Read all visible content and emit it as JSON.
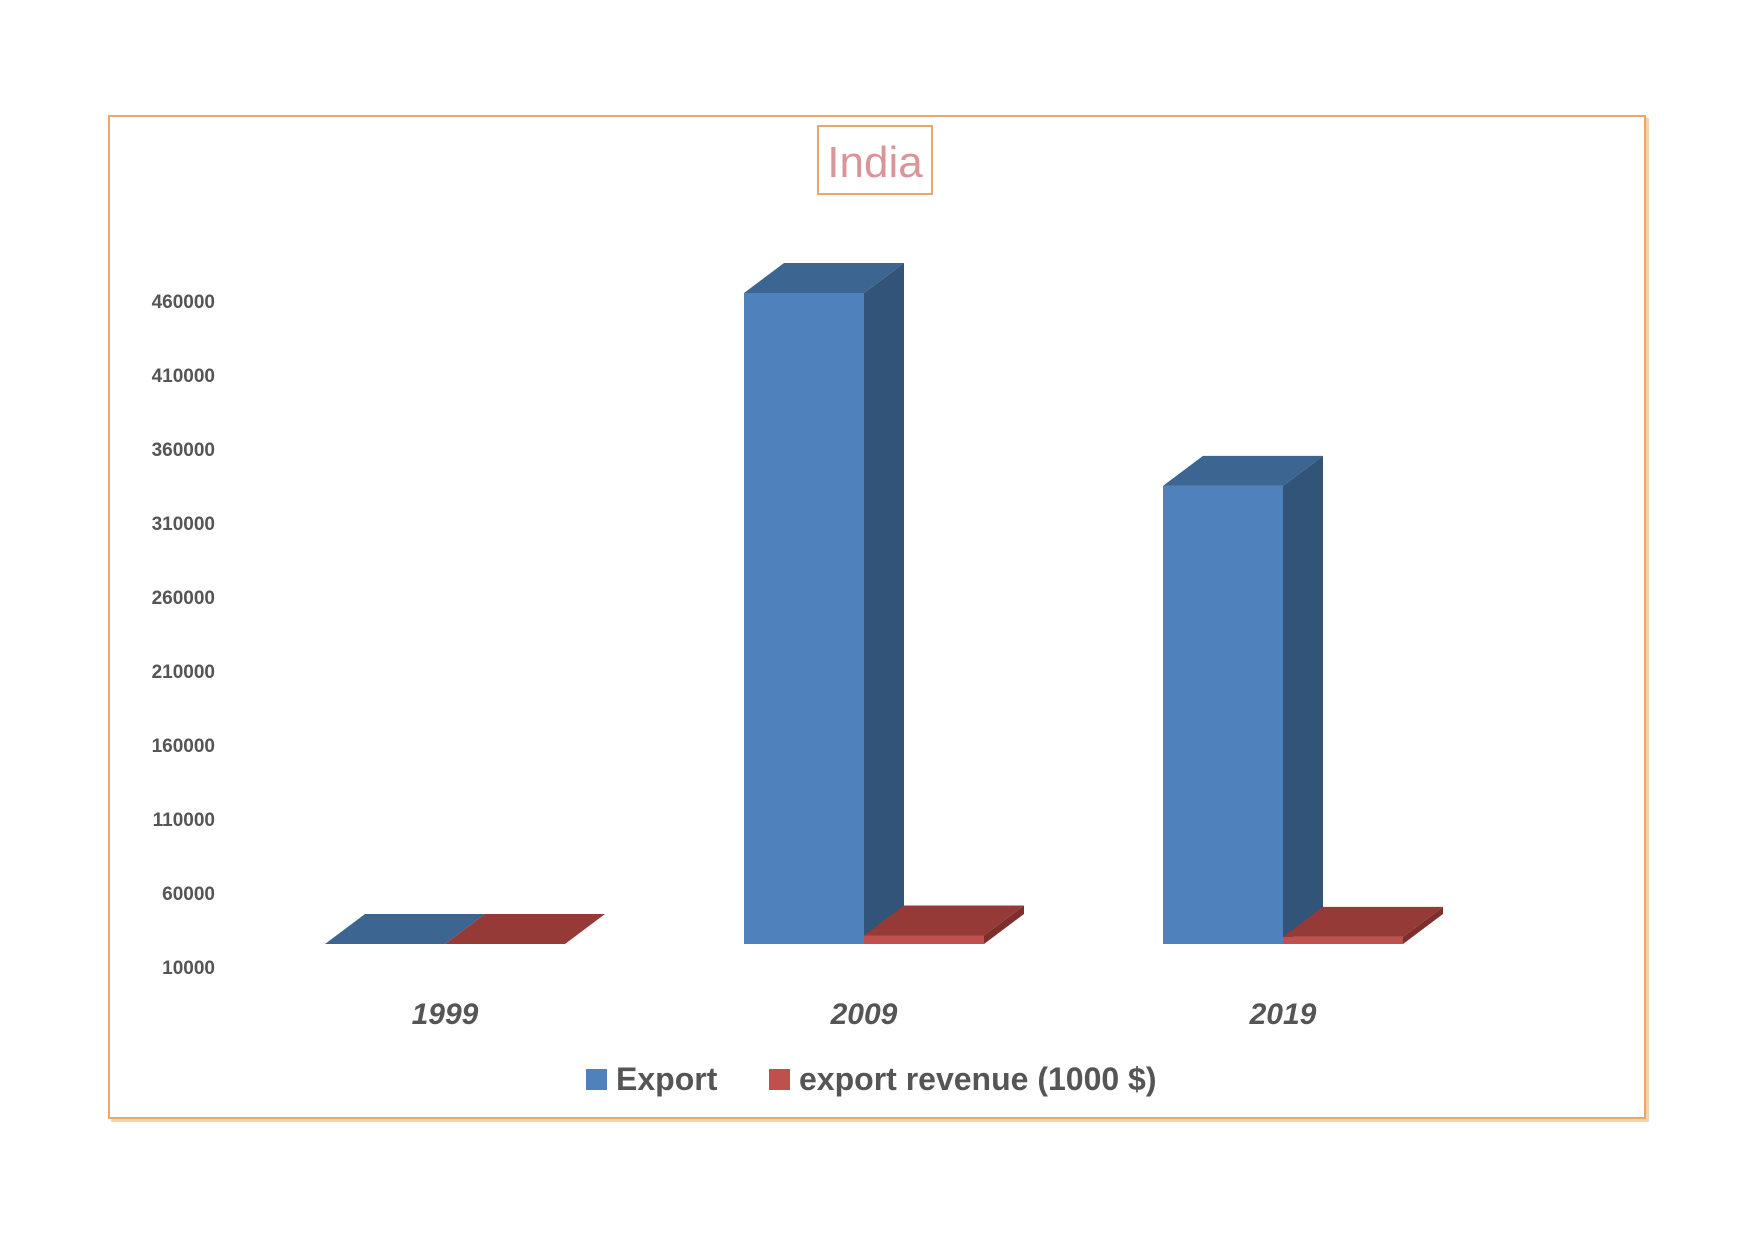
{
  "chart_data": {
    "type": "bar",
    "title": "India",
    "xlabel": "",
    "ylabel": "",
    "categories": [
      "1999",
      "2009",
      "2019"
    ],
    "series": [
      {
        "name": "Export",
        "values": [
          10000,
          469000,
          333000
        ],
        "color": "#4f81bd",
        "side_color": "#325479",
        "top_color": "#3c6591"
      },
      {
        "name": "export revenue (1000 $)",
        "values": [
          10,
          16000,
          15000
        ],
        "color": "#c0504d",
        "side_color": "#7c2f2d",
        "top_color": "#963a37"
      }
    ],
    "ylim": [
      10000,
      460000
    ],
    "yticks": [
      "10000",
      "60000",
      "110000",
      "160000",
      "210000",
      "260000",
      "310000",
      "360000",
      "410000",
      "460000"
    ],
    "grid": false,
    "legend": "bottom"
  }
}
